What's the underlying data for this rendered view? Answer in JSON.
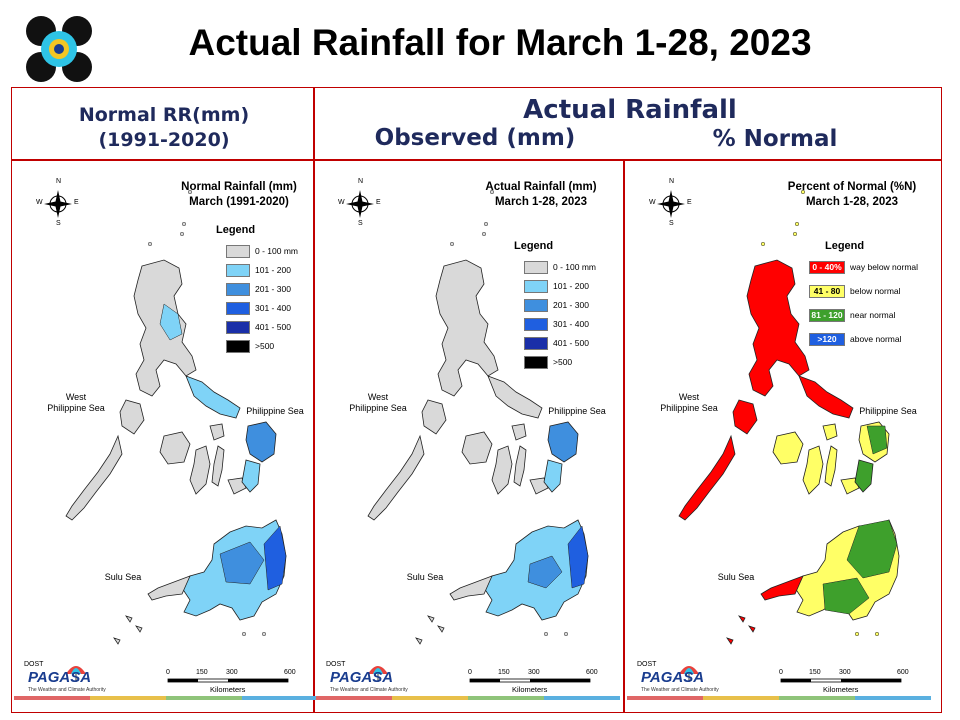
{
  "title": "Actual Rainfall for March 1-28, 2023",
  "headers": {
    "normal_line1": "Normal RR(mm)",
    "normal_line2": "(1991-2020)",
    "actual": "Actual Rainfall",
    "observed": "Observed (mm)",
    "percent": "% Normal"
  },
  "compass": {
    "n": "N",
    "s": "S",
    "e": "E",
    "w": "W"
  },
  "seas": {
    "west_line1": "West",
    "west_line2": "Philippine Sea",
    "east": "Philippine Sea",
    "sulu": "Sulu Sea"
  },
  "scale": {
    "ticks": [
      "0",
      "150",
      "300",
      "600"
    ],
    "unit": "Kilometers"
  },
  "branding": {
    "name": "PAGASA",
    "sub": "The Weather and Climate Authority",
    "dost": "DOST"
  },
  "panels": {
    "normal": {
      "title_line1": "Normal Rainfall (mm)",
      "title_line2": "March (1991-2020)",
      "legend_title": "Legend",
      "legend": [
        {
          "label": "0 - 100 mm",
          "color": "#d9d9d9"
        },
        {
          "label": "101 - 200",
          "color": "#7fd3f7"
        },
        {
          "label": "201 - 300",
          "color": "#3f8fde"
        },
        {
          "label": "301 - 400",
          "color": "#1f5fe0"
        },
        {
          "label": "401 - 500",
          "color": "#1a2fa8"
        },
        {
          "label": ">500",
          "color": "#000000"
        }
      ]
    },
    "actual": {
      "title_line1": "Actual Rainfall (mm)",
      "title_line2": "March 1-28, 2023",
      "legend_title": "Legend",
      "legend": [
        {
          "label": "0 - 100 mm",
          "color": "#d9d9d9"
        },
        {
          "label": "101 - 200",
          "color": "#7fd3f7"
        },
        {
          "label": "201 - 300",
          "color": "#3f8fde"
        },
        {
          "label": "301 - 400",
          "color": "#1f5fe0"
        },
        {
          "label": "401 - 500",
          "color": "#1a2fa8"
        },
        {
          "label": ">500",
          "color": "#000000"
        }
      ]
    },
    "percent": {
      "title_line1": "Percent of Normal (%N)",
      "title_line2": "March 1-28, 2023",
      "legend_title": "Legend",
      "legend": [
        {
          "range": "0 - 40%",
          "label": "way below normal",
          "color": "#ff0000"
        },
        {
          "range": "41 - 80",
          "label": "below normal",
          "color": "#ffff66"
        },
        {
          "range": "81 - 120",
          "label": "near normal",
          "color": "#3ea02c"
        },
        {
          "range": ">120",
          "label": "above normal",
          "color": "#1f5fe0"
        }
      ]
    }
  }
}
